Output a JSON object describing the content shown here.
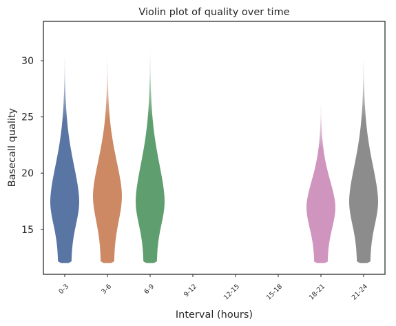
{
  "chart_data": {
    "type": "violin",
    "title": "Violin plot of quality over time",
    "xlabel": "Interval (hours)",
    "ylabel": "Basecall quality",
    "categories": [
      "0-3",
      "3-6",
      "6-9",
      "9-12",
      "12-15",
      "15-18",
      "18-21",
      "21-24"
    ],
    "ylim": [
      11,
      33.5
    ],
    "yticks": [
      15,
      20,
      25,
      30
    ],
    "grid": false,
    "series": [
      {
        "category": "0-3",
        "color": "#5875a4",
        "min": 12,
        "max": 30.5,
        "median": 17.5
      },
      {
        "category": "3-6",
        "color": "#cc8963",
        "min": 12,
        "max": 30.5,
        "median": 18.0
      },
      {
        "category": "6-9",
        "color": "#5f9e6e",
        "min": 12,
        "max": 31.0,
        "median": 17.5
      },
      {
        "category": "9-12",
        "color": null,
        "min": null,
        "max": null,
        "median": null
      },
      {
        "category": "12-15",
        "color": null,
        "min": null,
        "max": null,
        "median": null
      },
      {
        "category": "15-18",
        "color": null,
        "min": null,
        "max": null,
        "median": null
      },
      {
        "category": "18-21",
        "color": "#d095bf",
        "min": 12,
        "max": 26.5,
        "median": 17.0
      },
      {
        "category": "21-24",
        "color": "#8c8c8c",
        "min": 12,
        "max": 30.5,
        "median": 17.5
      }
    ]
  }
}
